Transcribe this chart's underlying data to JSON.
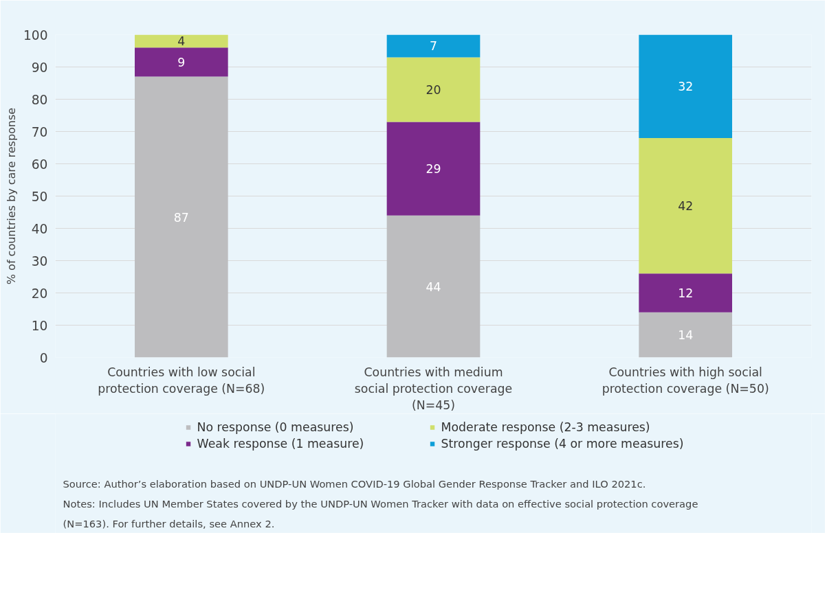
{
  "chart_data": {
    "type": "bar",
    "stacked": true,
    "ylabel": "% of countries by care response",
    "categories": [
      "Countries with low social protection coverage (N=68)",
      "Countries with medium social protection coverage (N=45)",
      "Countries with high social protection coverage (N=50)"
    ],
    "series": [
      {
        "name": "No response (0 measures)",
        "color": "#bdbdbf",
        "values": [
          87,
          44,
          14
        ],
        "value_labels": [
          "87",
          "44",
          "14"
        ]
      },
      {
        "name": "Weak response (1 measure)",
        "color": "#7b2a8b",
        "values": [
          9,
          29,
          12
        ],
        "value_labels": [
          "9",
          "29",
          "12"
        ]
      },
      {
        "name": "Moderate response (2-3 measures)",
        "color": "#d0df6c",
        "values": [
          4,
          20,
          42
        ],
        "value_labels": [
          "4",
          "20",
          "42"
        ]
      },
      {
        "name": "Stronger response (4 or more measures)",
        "color": "#0e9fd8",
        "values": [
          0,
          7,
          32
        ],
        "value_labels": [
          null,
          "7",
          "32"
        ]
      }
    ],
    "ylim": [
      0,
      100
    ],
    "yticks": [
      0,
      10,
      20,
      30,
      40,
      50,
      60,
      70,
      80,
      90,
      100
    ],
    "grid": "y",
    "legend": "bottom",
    "annotations": [
      "Source: Author’s elaboration based on UNDP-UN Women COVID-19 Global Gender Response Tracker and ILO 2021c.",
      "Notes: Includes UN Member States covered by the UNDP-UN Women Tracker with data on effective social protection coverage (N=163). For further details, see Annex 2."
    ]
  }
}
